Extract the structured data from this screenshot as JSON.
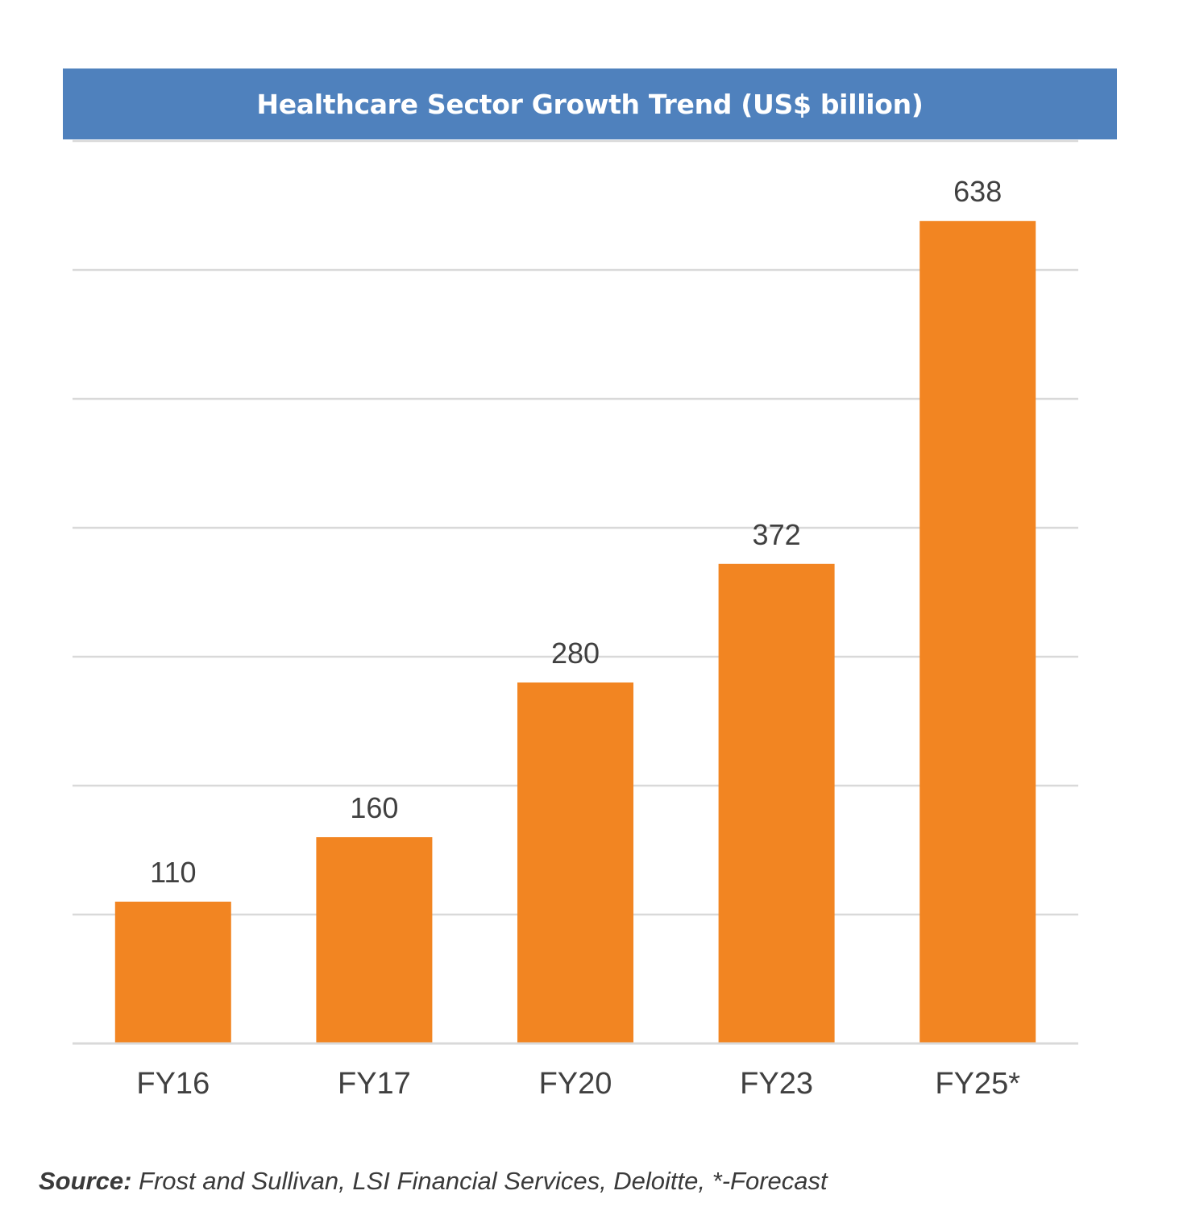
{
  "chart_data": {
    "type": "bar",
    "title": "Healthcare Sector Growth Trend (US$ billion)",
    "categories": [
      "FY16",
      "FY17",
      "FY20",
      "FY23",
      "FY25*"
    ],
    "values": [
      110,
      160,
      280,
      372,
      638
    ],
    "data_labels": [
      "110",
      "160",
      "280",
      "372",
      "638"
    ],
    "xlabel": "",
    "ylabel": "",
    "ylim": [
      0,
      700
    ],
    "grid": true,
    "gridline_step": 100,
    "y_tick_labels_shown": false,
    "legend": "none",
    "colors": {
      "bar": "#f28522",
      "title_background": "#4f81bd",
      "title_text": "#ffffff",
      "gridline": "#d9d9d9",
      "label_text": "#404040"
    }
  },
  "source": {
    "label": "Source:",
    "text": " Frost and Sullivan, LSI Financial Services, Deloitte, *-Forecast"
  }
}
